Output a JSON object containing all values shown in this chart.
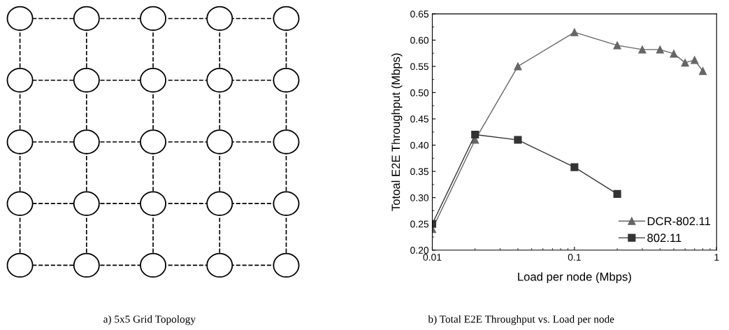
{
  "chart_data": [
    {
      "type": "other",
      "title": "a) 5x5 Grid Topology"
    },
    {
      "type": "line",
      "title": "b) Total E2E Throughput vs. Load per node",
      "xlabel": "Load per node (Mbps)",
      "ylabel": "Totoal E2E Throughput (Mbps)",
      "log": "x",
      "xlim": [
        0.01,
        1
      ],
      "xticks": [
        0.01,
        0.1,
        1
      ],
      "ylim": [
        0.2,
        0.65
      ],
      "yticks": [
        {
          "value": 0.2,
          "label": "0.20"
        },
        {
          "value": 0.25,
          "label": "0.25"
        },
        {
          "value": 0.3,
          "label": "0.30"
        },
        {
          "value": 0.35,
          "label": "0.35"
        },
        {
          "value": 0.4,
          "label": "0.40"
        },
        {
          "value": 0.45,
          "label": "0.45"
        },
        {
          "value": 0.5,
          "label": "0.50"
        },
        {
          "value": 0.55,
          "label": "0.55"
        },
        {
          "value": 0.6,
          "label": "0.60"
        },
        {
          "value": 0.65,
          "label": "0.65"
        }
      ],
      "grid": false,
      "legend": "bottom right",
      "series": [
        {
          "name": "DCR-802.11",
          "color": "#666666",
          "marker": "triangle",
          "x": [
            0.01,
            0.02,
            0.04,
            0.1,
            0.2,
            0.3,
            0.4,
            0.5,
            0.6,
            0.7,
            0.8
          ],
          "values": [
            0.24,
            0.41,
            0.55,
            0.615,
            0.59,
            0.582,
            0.582,
            0.574,
            0.557,
            0.562,
            0.541
          ]
        },
        {
          "name": "802.11",
          "color": "#333333",
          "marker": "square",
          "x": [
            0.01,
            0.02,
            0.04,
            0.1,
            0.2
          ],
          "values": [
            0.25,
            0.42,
            0.41,
            0.358,
            0.307
          ]
        }
      ]
    }
  ]
}
